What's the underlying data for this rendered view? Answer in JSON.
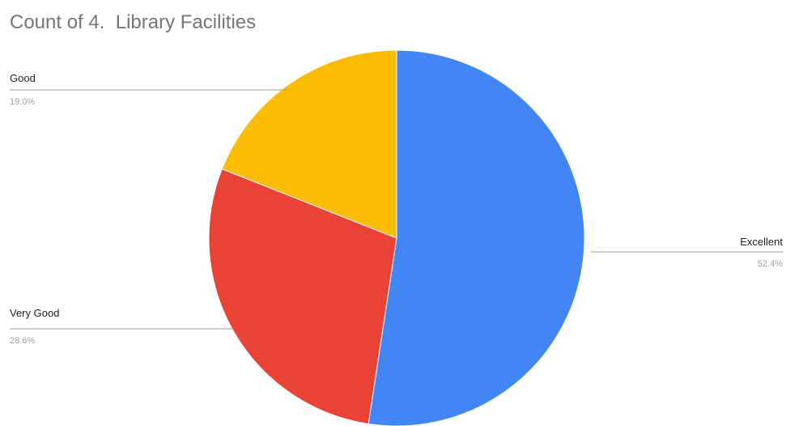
{
  "chart_data": {
    "type": "pie",
    "title": "Count of 4.  Library Facilities",
    "slices": [
      {
        "label": "Excellent",
        "value": 52.4,
        "display": "52.4%",
        "color": "#4285f4"
      },
      {
        "label": "Very Good",
        "value": 28.6,
        "display": "28.6%",
        "color": "#ea4335"
      },
      {
        "label": "Good",
        "value": 19.0,
        "display": "19.0%",
        "color": "#fbbc04"
      }
    ],
    "start": "top",
    "direction": "clockwise",
    "legend": "none"
  }
}
